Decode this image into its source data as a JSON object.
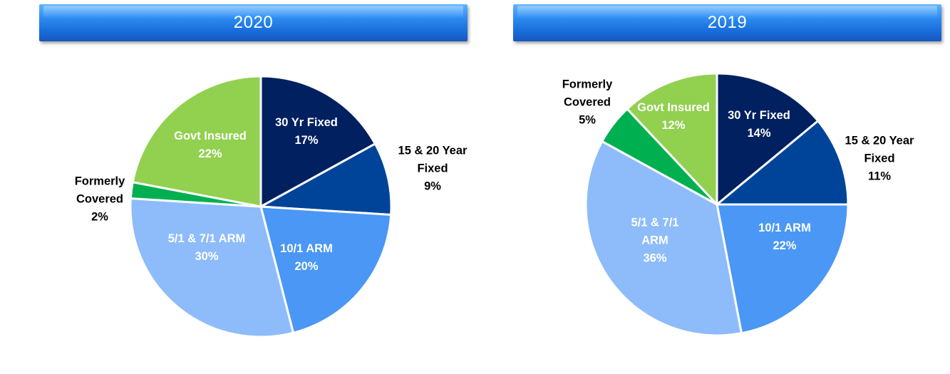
{
  "chart_data": [
    {
      "type": "pie",
      "title": "2020",
      "slices": [
        {
          "label_lines": [
            "30 Yr Fixed"
          ],
          "pct_text": "17%",
          "value": 17,
          "color": "#002060",
          "label_color": "#ffffff"
        },
        {
          "label_lines": [
            "15 & 20 Year",
            "Fixed"
          ],
          "pct_text": "9%",
          "value": 9,
          "color": "#00449a",
          "label_color": "#000000"
        },
        {
          "label_lines": [
            "10/1 ARM"
          ],
          "pct_text": "20%",
          "value": 20,
          "color": "#4a97f5",
          "label_color": "#ffffff"
        },
        {
          "label_lines": [
            "5/1 & 7/1 ARM"
          ],
          "pct_text": "30%",
          "value": 30,
          "color": "#8ebcfa",
          "label_color": "#ffffff"
        },
        {
          "label_lines": [
            "Formerly",
            "Covered"
          ],
          "pct_text": "2%",
          "value": 2,
          "color": "#00b050",
          "label_color": "#000000"
        },
        {
          "label_lines": [
            "Govt Insured"
          ],
          "pct_text": "22%",
          "value": 22,
          "color": "#92d050",
          "label_color": "#ffffff"
        }
      ]
    },
    {
      "type": "pie",
      "title": "2019",
      "slices": [
        {
          "label_lines": [
            "30 Yr Fixed"
          ],
          "pct_text": "14%",
          "value": 14,
          "color": "#002060",
          "label_color": "#ffffff"
        },
        {
          "label_lines": [
            "15 & 20 Year",
            "Fixed"
          ],
          "pct_text": "11%",
          "value": 11,
          "color": "#00449a",
          "label_color": "#000000"
        },
        {
          "label_lines": [
            "10/1 ARM"
          ],
          "pct_text": "22%",
          "value": 22,
          "color": "#4a97f5",
          "label_color": "#ffffff"
        },
        {
          "label_lines": [
            "5/1 & 7/1",
            "ARM"
          ],
          "pct_text": "36%",
          "value": 36,
          "color": "#8ebcfa",
          "label_color": "#ffffff"
        },
        {
          "label_lines": [
            "Formerly",
            "Covered"
          ],
          "pct_text": "5%",
          "value": 5,
          "color": "#00b050",
          "label_color": "#000000"
        },
        {
          "label_lines": [
            "Govt Insured"
          ],
          "pct_text": "12%",
          "value": 12,
          "color": "#92d050",
          "label_color": "#ffffff"
        }
      ]
    }
  ]
}
